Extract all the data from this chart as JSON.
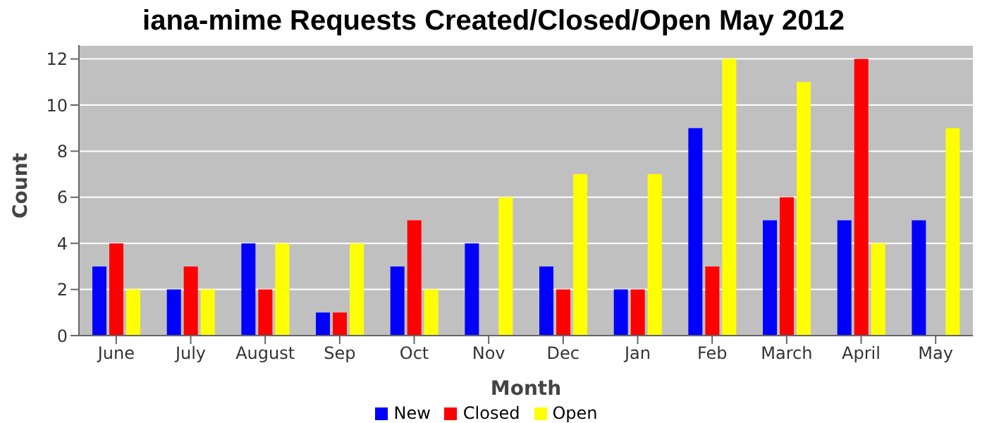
{
  "chart_data": {
    "type": "bar",
    "title": "iana-mime Requests Created/Closed/Open May 2012",
    "xlabel": "Month",
    "ylabel": "Count",
    "categories": [
      "June",
      "July",
      "August",
      "Sep",
      "Oct",
      "Nov",
      "Dec",
      "Jan",
      "Feb",
      "March",
      "April",
      "May"
    ],
    "series": [
      {
        "name": "New",
        "color": "#0000ff",
        "values": [
          3,
          2,
          4,
          1,
          3,
          4,
          3,
          2,
          9,
          5,
          5,
          5
        ]
      },
      {
        "name": "Closed",
        "color": "#ff0000",
        "values": [
          4,
          3,
          2,
          1,
          5,
          0,
          2,
          2,
          3,
          6,
          12,
          0
        ]
      },
      {
        "name": "Open",
        "color": "#ffff00",
        "values": [
          2,
          2,
          4,
          4,
          2,
          6,
          7,
          7,
          12,
          11,
          4,
          9
        ]
      }
    ],
    "ylim": [
      0,
      12.6
    ],
    "yticks": [
      0,
      2,
      4,
      6,
      8,
      10,
      12
    ],
    "grid": "y",
    "legend": "bottom"
  }
}
